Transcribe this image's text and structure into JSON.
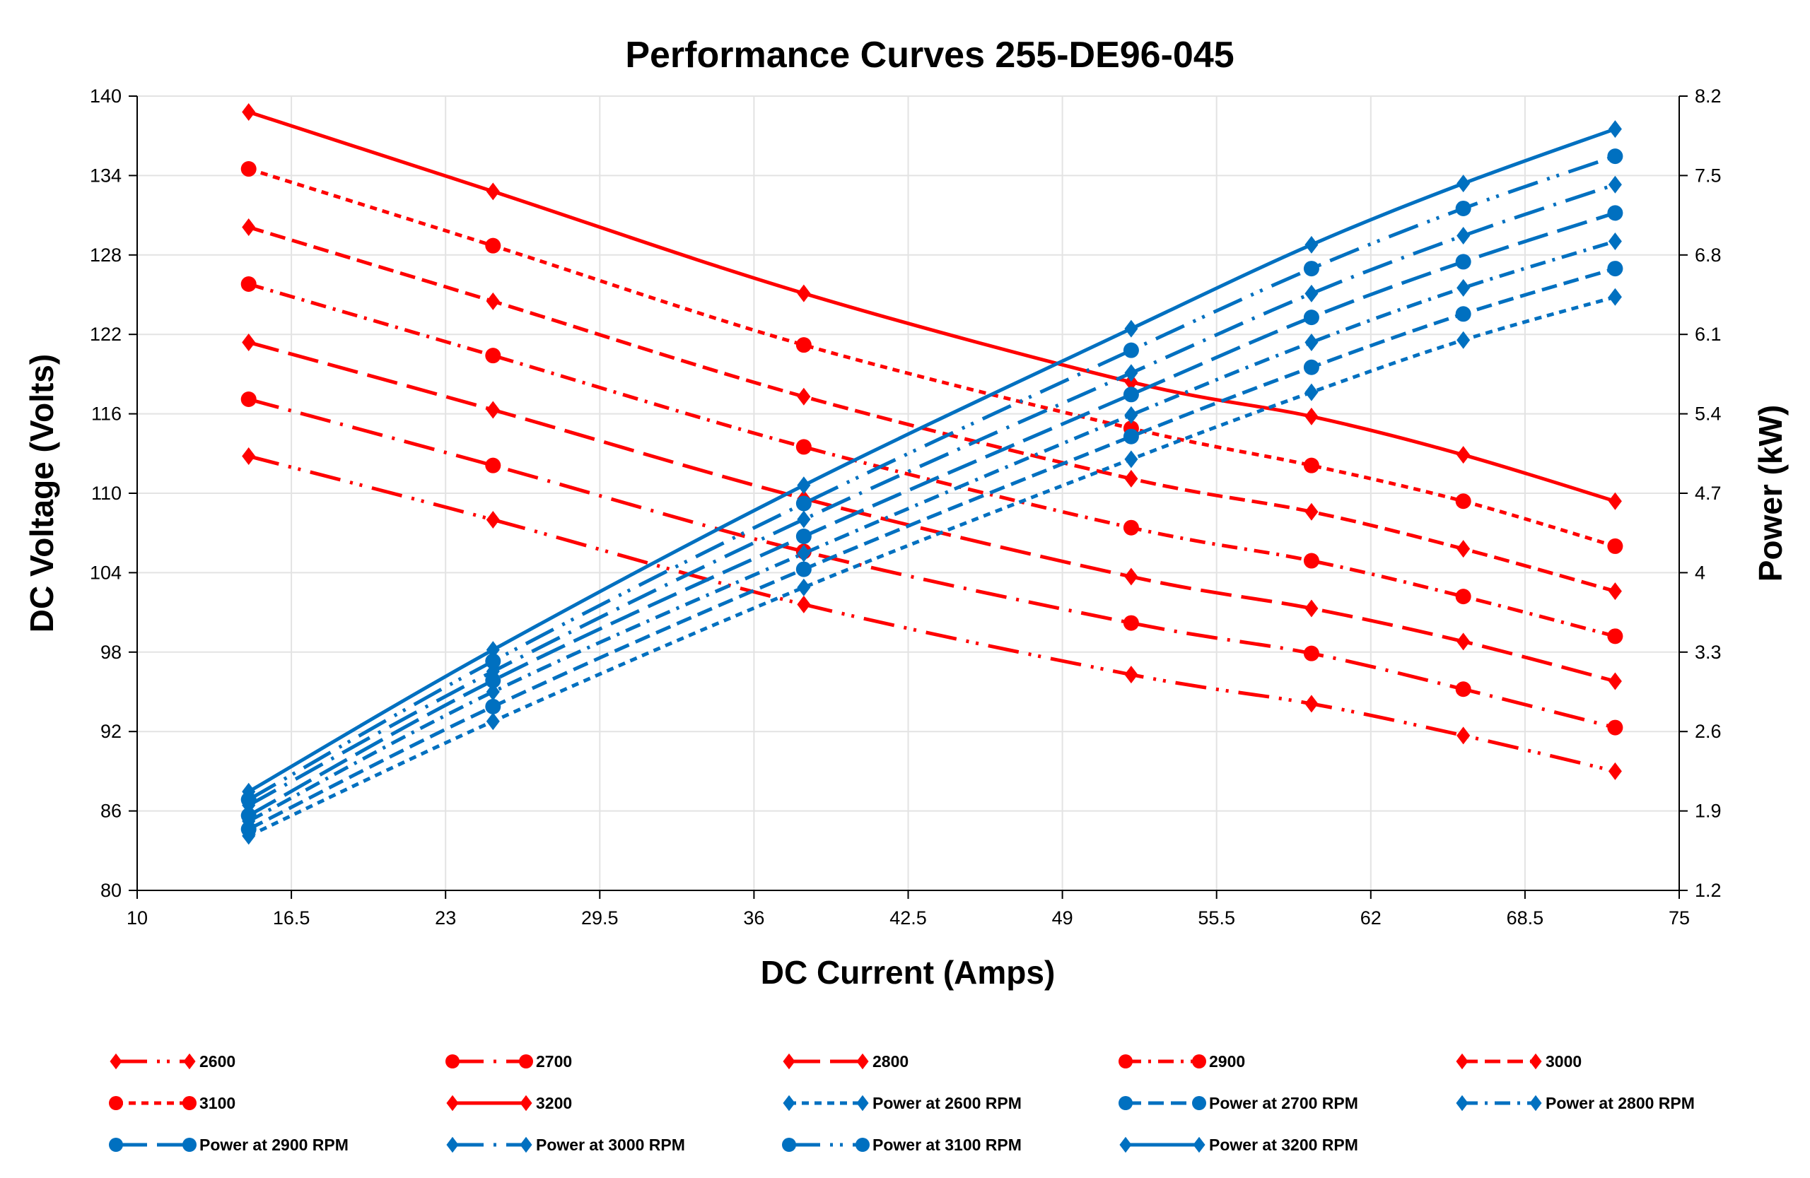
{
  "chart_data": {
    "type": "line",
    "title": "Performance Curves 255-DE96-045",
    "xlabel": "DC Current (Amps)",
    "ylabel": "DC Voltage (Volts)",
    "y2label": "Power (kW)",
    "xlim": [
      10,
      75
    ],
    "ylim": [
      80,
      140
    ],
    "y2lim": [
      1.2,
      8.2
    ],
    "xticks": [
      "10",
      "16.5",
      "23",
      "29.5",
      "36",
      "42.5",
      "49",
      "55.5",
      "62",
      "68.5",
      "75"
    ],
    "yticks": [
      "80",
      "86",
      "92",
      "98",
      "104",
      "110",
      "116",
      "122",
      "128",
      "134",
      "140"
    ],
    "y2ticks": [
      "1.2",
      "1.9",
      "2.6",
      "3.3",
      "4",
      "4.7",
      "5.4",
      "6.1",
      "6.8",
      "7.5",
      "8.2"
    ],
    "grid": true,
    "legend_placement": "bottom",
    "colors": {
      "voltage": "#ff0000",
      "power": "#0070c0"
    },
    "x": [
      14.7,
      25.0,
      38.1,
      51.9,
      59.5,
      65.9,
      72.3
    ],
    "series": [
      {
        "name": "2600",
        "axis": "left",
        "marker": "diamond",
        "dash": "long-dash-dot-dot",
        "values": [
          112.8,
          108.0,
          101.6,
          96.3,
          94.1,
          91.7,
          89.0
        ]
      },
      {
        "name": "2700",
        "axis": "left",
        "marker": "circle",
        "dash": "long-dash-dot",
        "values": [
          117.1,
          112.1,
          105.6,
          100.2,
          97.9,
          95.2,
          92.3
        ]
      },
      {
        "name": "2800",
        "axis": "left",
        "marker": "diamond",
        "dash": "long-dash",
        "values": [
          121.4,
          116.3,
          109.6,
          103.7,
          101.3,
          98.8,
          95.8
        ]
      },
      {
        "name": "2900",
        "axis": "left",
        "marker": "circle",
        "dash": "dash-dot",
        "values": [
          125.8,
          120.4,
          113.5,
          107.4,
          104.9,
          102.2,
          99.2
        ]
      },
      {
        "name": "3000",
        "axis": "left",
        "marker": "diamond",
        "dash": "dash",
        "values": [
          130.1,
          124.5,
          117.3,
          111.1,
          108.6,
          105.8,
          102.6
        ]
      },
      {
        "name": "3100",
        "axis": "left",
        "marker": "circle",
        "dash": "round-dot",
        "values": [
          134.5,
          128.7,
          121.2,
          114.9,
          112.1,
          109.4,
          106.0
        ]
      },
      {
        "name": "3200",
        "axis": "left",
        "marker": "diamond",
        "dash": "solid",
        "values": [
          138.8,
          132.8,
          125.1,
          118.4,
          115.8,
          112.9,
          109.4
        ]
      },
      {
        "name": "Power at 2600 RPM",
        "axis": "right",
        "marker": "diamond",
        "dash": "round-dot",
        "values": [
          1.68,
          2.69,
          3.87,
          5.0,
          5.59,
          6.05,
          6.43
        ]
      },
      {
        "name": "Power at 2700 RPM",
        "axis": "right",
        "marker": "circle",
        "dash": "dash",
        "values": [
          1.74,
          2.82,
          4.03,
          5.2,
          5.81,
          6.28,
          6.68
        ]
      },
      {
        "name": "Power at 2800 RPM",
        "axis": "right",
        "marker": "diamond",
        "dash": "dash-dot",
        "values": [
          1.81,
          2.95,
          4.17,
          5.39,
          6.03,
          6.51,
          6.92
        ]
      },
      {
        "name": "Power at 2900 RPM",
        "axis": "right",
        "marker": "circle",
        "dash": "long-dash",
        "values": [
          1.86,
          3.05,
          4.32,
          5.57,
          6.25,
          6.74,
          7.17
        ]
      },
      {
        "name": "Power at 3000 RPM",
        "axis": "right",
        "marker": "diamond",
        "dash": "long-dash-dot",
        "values": [
          1.95,
          3.13,
          4.47,
          5.76,
          6.46,
          6.97,
          7.42
        ]
      },
      {
        "name": "Power at 3100 RPM",
        "axis": "right",
        "marker": "circle",
        "dash": "long-dash-dot-dot",
        "values": [
          2.0,
          3.22,
          4.61,
          5.96,
          6.68,
          7.21,
          7.67
        ]
      },
      {
        "name": "Power at 3200 RPM",
        "axis": "right",
        "marker": "diamond",
        "dash": "solid",
        "values": [
          2.07,
          3.32,
          4.77,
          6.15,
          6.89,
          7.43,
          7.91
        ]
      }
    ]
  }
}
